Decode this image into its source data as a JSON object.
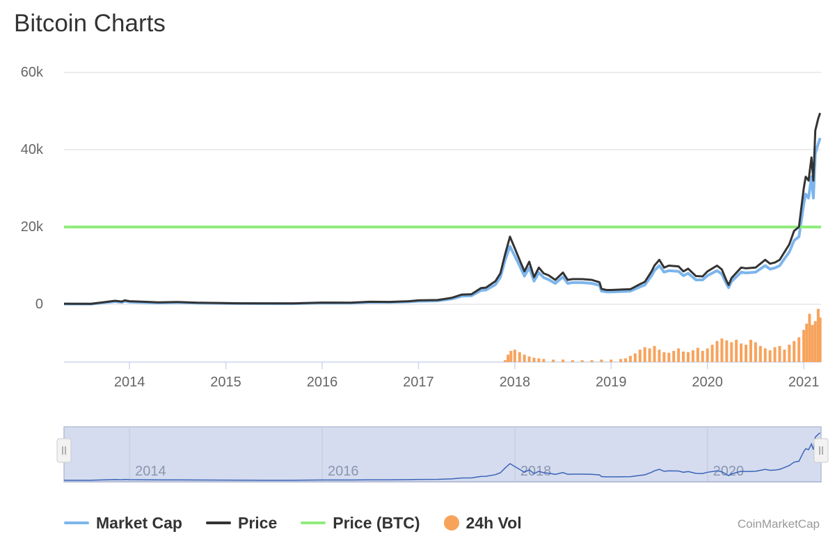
{
  "title": "Bitcoin Charts",
  "credit": "CoinMarketCap",
  "colors": {
    "market_cap": "#7cb5ec",
    "price": "#333333",
    "price_btc": "#90ed7d",
    "vol": "#f7a35c",
    "navigator_fill": "#d5dcef",
    "navigator_line": "#3a63b8",
    "grid": "#e6e6e6"
  },
  "legend": [
    {
      "label": "Market Cap",
      "color": "#7cb5ec",
      "shape": "line"
    },
    {
      "label": "Price",
      "color": "#333333",
      "shape": "line"
    },
    {
      "label": "Price (BTC)",
      "color": "#90ed7d",
      "shape": "line"
    },
    {
      "label": "24h Vol",
      "color": "#f7a35c",
      "shape": "dot"
    }
  ],
  "chart_data": {
    "type": "line",
    "title": "Bitcoin Charts",
    "xlabel": "",
    "ylabel": "",
    "x_range": [
      2013.32,
      2021.18
    ],
    "ylim": [
      0,
      60000
    ],
    "y_ticks": [
      0,
      20000,
      40000,
      60000
    ],
    "y_tick_labels": [
      "0",
      "20k",
      "40k",
      "60k"
    ],
    "x_ticks": [
      2014,
      2015,
      2016,
      2017,
      2018,
      2019,
      2020,
      2021
    ],
    "x_tick_labels": [
      "2014",
      "2015",
      "2016",
      "2017",
      "2018",
      "2019",
      "2020",
      "2021"
    ],
    "grid": true,
    "legend_position": "bottom-left",
    "series": [
      {
        "name": "Price",
        "x": [
          2013.32,
          2013.6,
          2013.85,
          2013.92,
          2013.95,
          2014.0,
          2014.1,
          2014.3,
          2014.5,
          2014.7,
          2014.9,
          2015.1,
          2015.4,
          2015.7,
          2015.9,
          2016.0,
          2016.3,
          2016.5,
          2016.7,
          2016.9,
          2017.0,
          2017.2,
          2017.35,
          2017.45,
          2017.55,
          2017.65,
          2017.7,
          2017.8,
          2017.85,
          2017.9,
          2017.95,
          2018.0,
          2018.05,
          2018.1,
          2018.15,
          2018.2,
          2018.25,
          2018.3,
          2018.35,
          2018.42,
          2018.5,
          2018.55,
          2018.6,
          2018.65,
          2018.7,
          2018.8,
          2018.88,
          2018.9,
          2018.95,
          2019.0,
          2019.1,
          2019.2,
          2019.3,
          2019.35,
          2019.42,
          2019.45,
          2019.5,
          2019.55,
          2019.6,
          2019.7,
          2019.75,
          2019.8,
          2019.88,
          2019.95,
          2020.0,
          2020.1,
          2020.15,
          2020.2,
          2020.22,
          2020.25,
          2020.35,
          2020.4,
          2020.5,
          2020.6,
          2020.65,
          2020.7,
          2020.75,
          2020.8,
          2020.85,
          2020.9,
          2020.95,
          2021.0,
          2021.02,
          2021.05,
          2021.08,
          2021.1,
          2021.12,
          2021.15,
          2021.17
        ],
        "values": [
          120,
          110,
          900,
          700,
          1000,
          800,
          700,
          500,
          600,
          400,
          350,
          260,
          240,
          230,
          360,
          430,
          420,
          650,
          620,
          800,
          1000,
          1100,
          1700,
          2500,
          2600,
          4200,
          4300,
          6000,
          8000,
          13000,
          17500,
          14500,
          11500,
          8500,
          11000,
          7000,
          9500,
          8000,
          7500,
          6300,
          8200,
          6300,
          6500,
          6500,
          6500,
          6300,
          5700,
          4000,
          3700,
          3700,
          3800,
          3900,
          5200,
          5800,
          8500,
          10000,
          11500,
          9500,
          10000,
          9800,
          8500,
          9200,
          7300,
          7200,
          8500,
          10000,
          9000,
          6000,
          5000,
          6800,
          9500,
          9300,
          9500,
          11500,
          10500,
          10800,
          11500,
          13500,
          15500,
          19000,
          20000,
          30000,
          33000,
          32000,
          38000,
          32000,
          45000,
          48000,
          49500
        ]
      },
      {
        "name": "Market Cap",
        "x": [
          2013.32,
          2013.6,
          2013.85,
          2013.92,
          2013.95,
          2014.0,
          2014.1,
          2014.3,
          2014.5,
          2014.7,
          2014.9,
          2015.1,
          2015.4,
          2015.7,
          2015.9,
          2016.0,
          2016.3,
          2016.5,
          2016.7,
          2016.9,
          2017.0,
          2017.2,
          2017.35,
          2017.45,
          2017.55,
          2017.65,
          2017.7,
          2017.8,
          2017.85,
          2017.9,
          2017.95,
          2018.0,
          2018.05,
          2018.1,
          2018.15,
          2018.2,
          2018.25,
          2018.3,
          2018.35,
          2018.42,
          2018.5,
          2018.55,
          2018.6,
          2018.65,
          2018.7,
          2018.8,
          2018.88,
          2018.9,
          2018.95,
          2019.0,
          2019.1,
          2019.2,
          2019.3,
          2019.35,
          2019.42,
          2019.45,
          2019.5,
          2019.55,
          2019.6,
          2019.7,
          2019.75,
          2019.8,
          2019.88,
          2019.95,
          2020.0,
          2020.1,
          2020.15,
          2020.2,
          2020.22,
          2020.25,
          2020.35,
          2020.4,
          2020.5,
          2020.6,
          2020.65,
          2020.7,
          2020.75,
          2020.8,
          2020.85,
          2020.9,
          2020.95,
          2021.0,
          2021.02,
          2021.05,
          2021.08,
          2021.1,
          2021.12,
          2021.15,
          2021.17
        ],
        "values": [
          80,
          70,
          700,
          500,
          800,
          600,
          500,
          350,
          450,
          300,
          260,
          200,
          180,
          170,
          280,
          330,
          320,
          520,
          500,
          650,
          800,
          900,
          1400,
          2100,
          2200,
          3600,
          3700,
          5100,
          7000,
          11500,
          15000,
          12500,
          10000,
          7300,
          9500,
          6000,
          8200,
          6900,
          6400,
          5400,
          7100,
          5400,
          5600,
          5600,
          5600,
          5400,
          4900,
          3400,
          3200,
          3200,
          3300,
          3400,
          4500,
          5000,
          7400,
          8700,
          10000,
          8300,
          8700,
          8500,
          7400,
          8000,
          6300,
          6300,
          7400,
          8700,
          7800,
          5200,
          4300,
          5900,
          8300,
          8100,
          8300,
          10000,
          9100,
          9400,
          10000,
          11800,
          13500,
          16500,
          17500,
          26000,
          28500,
          27500,
          33000,
          27500,
          39000,
          41500,
          43000
        ]
      },
      {
        "name": "Price (BTC)",
        "x": [
          2013.32,
          2021.18
        ],
        "values": [
          20000,
          20000
        ]
      },
      {
        "name": "24h Vol",
        "type": "bar",
        "x": [
          2017.9,
          2017.93,
          2017.96,
          2018.0,
          2018.05,
          2018.1,
          2018.15,
          2018.2,
          2018.25,
          2018.3,
          2018.4,
          2018.5,
          2018.6,
          2018.7,
          2018.8,
          2018.9,
          2019.0,
          2019.1,
          2019.15,
          2019.2,
          2019.25,
          2019.3,
          2019.35,
          2019.4,
          2019.45,
          2019.5,
          2019.55,
          2019.6,
          2019.65,
          2019.7,
          2019.75,
          2019.8,
          2019.85,
          2019.9,
          2019.95,
          2020.0,
          2020.05,
          2020.1,
          2020.15,
          2020.2,
          2020.25,
          2020.3,
          2020.35,
          2020.4,
          2020.45,
          2020.5,
          2020.55,
          2020.6,
          2020.65,
          2020.7,
          2020.75,
          2020.8,
          2020.85,
          2020.9,
          2020.95,
          2021.0,
          2021.03,
          2021.06,
          2021.09,
          2021.12,
          2021.15,
          2021.17
        ],
        "values": [
          0.3,
          1.2,
          1.8,
          2.0,
          1.6,
          1.2,
          0.9,
          0.7,
          0.6,
          0.5,
          0.4,
          0.4,
          0.3,
          0.3,
          0.3,
          0.4,
          0.4,
          0.5,
          0.6,
          1.0,
          1.4,
          2.0,
          2.4,
          2.2,
          2.6,
          2.0,
          1.6,
          1.5,
          1.8,
          2.2,
          1.7,
          1.6,
          1.9,
          2.3,
          1.8,
          2.2,
          2.8,
          3.4,
          3.8,
          3.5,
          3.2,
          3.6,
          3.0,
          2.8,
          3.6,
          3.2,
          2.6,
          2.2,
          1.9,
          2.4,
          2.6,
          2.0,
          2.8,
          3.4,
          4.0,
          5.2,
          6.2,
          7.8,
          6.0,
          6.6,
          8.6,
          7.2
        ],
        "max": 9.0
      }
    ]
  },
  "navigator": {
    "x_tick_labels": [
      "2014",
      "2016",
      "2018",
      "2020"
    ],
    "x_ticks": [
      2014,
      2016,
      2018,
      2020
    ]
  }
}
